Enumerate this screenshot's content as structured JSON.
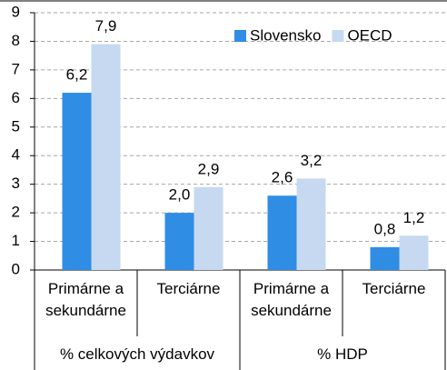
{
  "chart_data": {
    "type": "bar",
    "categories": [
      "Primárne a sekundárne",
      "Terciárne",
      "Primárne a sekundárne",
      "Terciárne"
    ],
    "category_groups": [
      "% celkových výdavkov",
      "% HDP"
    ],
    "series": [
      {
        "name": "Slovensko",
        "color": "#2f8de4",
        "values": [
          6.2,
          2.0,
          2.6,
          0.8
        ],
        "value_labels": [
          "6,2",
          "2,0",
          "2,6",
          "0,8"
        ]
      },
      {
        "name": "OECD",
        "color": "#c6d9f1",
        "values": [
          7.9,
          2.9,
          3.2,
          1.2
        ],
        "value_labels": [
          "7,9",
          "2,9",
          "3,2",
          "1,2"
        ]
      }
    ],
    "ylim": [
      0,
      9
    ],
    "yticks": [
      0,
      1,
      2,
      3,
      4,
      5,
      6,
      7,
      8,
      9
    ],
    "grid": true,
    "legend": "upper right"
  }
}
